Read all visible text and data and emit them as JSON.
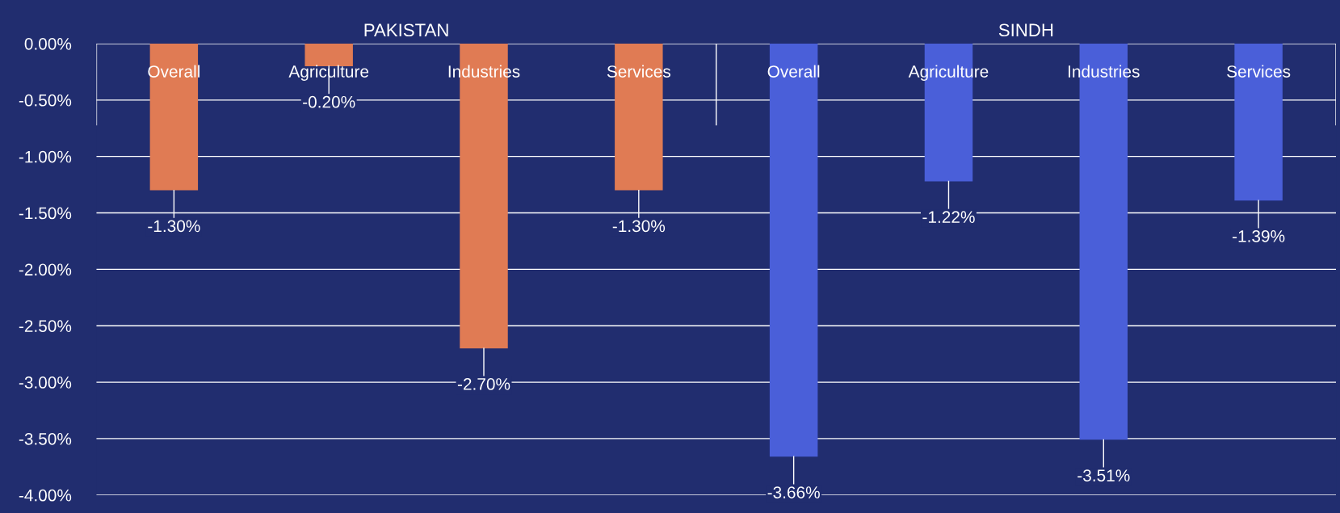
{
  "chart_data": {
    "type": "bar",
    "categories": [
      "Overall",
      "Agriculture",
      "Industries",
      "Services",
      "Overall",
      "Agriculture",
      "Industries",
      "Services"
    ],
    "values": [
      -1.3,
      -0.2,
      -2.7,
      -1.3,
      -3.66,
      -1.22,
      -3.51,
      -1.39
    ],
    "colors": [
      "#e07b54",
      "#e07b54",
      "#e07b54",
      "#e07b54",
      "#4a5fd9",
      "#4a5fd9",
      "#4a5fd9",
      "#4a5fd9"
    ],
    "value_labels": [
      "-1.30%",
      "-0.20%",
      "-2.70%",
      "-1.30%",
      "-3.66%",
      "-1.22%",
      "-3.51%",
      "-1.39%"
    ],
    "annotations": [
      "PAKISTAN",
      "SINDH"
    ],
    "ylim": [
      -4.0,
      0.0
    ],
    "yticks": [
      {
        "value": 0,
        "label": "0.00%"
      },
      {
        "value": -0.5,
        "label": "-0.50%"
      },
      {
        "value": -1.0,
        "label": "-1.00%"
      },
      {
        "value": -1.5,
        "label": "-1.50%"
      },
      {
        "value": -2.0,
        "label": "-2.00%"
      },
      {
        "value": -2.5,
        "label": "-2.50%"
      },
      {
        "value": -3.0,
        "label": "-3.00%"
      },
      {
        "value": -3.5,
        "label": "-3.50%"
      },
      {
        "value": -4.0,
        "label": "-4.00%"
      }
    ],
    "grid": "y"
  }
}
